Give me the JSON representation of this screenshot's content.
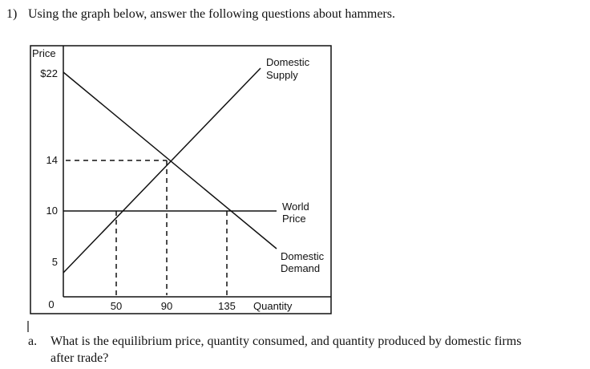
{
  "question": {
    "number": "1)",
    "text": "Using the graph below, answer the following questions about hammers."
  },
  "figure": {
    "y_axis_label": "Price",
    "yticks": [
      {
        "value": 22,
        "label": "$22"
      },
      14,
      10,
      5
    ],
    "origin_label": "0",
    "xticks": [
      50,
      90,
      135
    ],
    "x_axis_label": "Quantity",
    "supply_label": [
      "Domestic",
      "Supply"
    ],
    "world_price_label": [
      "World",
      "Price"
    ],
    "demand_label": [
      "Domestic",
      "Demand"
    ]
  },
  "subquestion": {
    "letter": "a.",
    "lines": [
      "What is the equilibrium price, quantity consumed, and quantity produced by domestic firms",
      "after trade?"
    ]
  }
}
